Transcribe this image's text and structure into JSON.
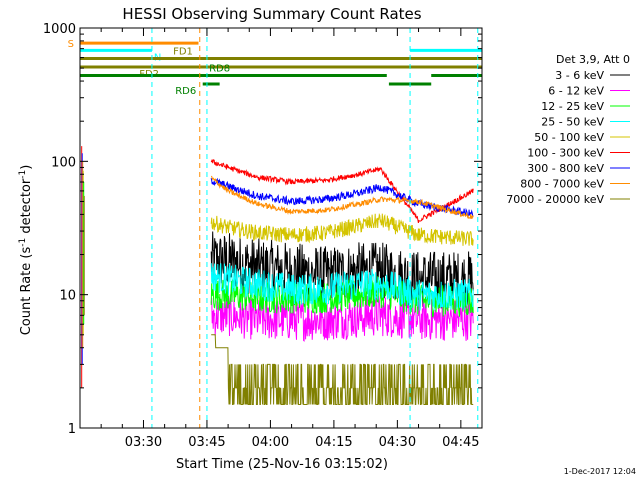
{
  "chart_data": {
    "type": "line",
    "title": "HESSI Observing Summary Count Rates",
    "xlabel": "Start Time (25-Nov-16 03:15:02)",
    "ylabel_main": "Count Rate (s",
    "ylabel_sup1": "-1",
    "ylabel_mid": " detector",
    "ylabel_sup2": "-1",
    "ylabel_end": ")",
    "yscale": "log",
    "ylim": [
      1,
      1000
    ],
    "xlim_minutes": [
      0,
      95
    ],
    "x_ticks": [
      "03:30",
      "03:45",
      "04:00",
      "04:15",
      "04:30",
      "04:45"
    ],
    "y_ticks": [
      "1",
      "10",
      "100",
      "1000"
    ],
    "legend_title": "Det 3,9, Att 0",
    "footer_date": "1-Dec-2017 12:04",
    "series": [
      {
        "name": "3 - 6 keV",
        "color": "#000000",
        "values": [
          18,
          18,
          16,
          15,
          14,
          15,
          15,
          13,
          13
        ]
      },
      {
        "name": "6 - 12 keV",
        "color": "#ff00ff",
        "values": [
          7,
          7,
          6.5,
          6.5,
          6.5,
          6.8,
          7,
          6.5,
          6.5
        ]
      },
      {
        "name": "12 - 25 keV",
        "color": "#00ff00",
        "values": [
          10,
          10,
          9.5,
          9.5,
          9.5,
          10,
          10.5,
          9,
          9
        ]
      },
      {
        "name": "25 - 50 keV",
        "color": "#00ffff",
        "values": [
          14,
          13,
          12,
          11,
          11,
          12,
          12,
          10,
          10
        ]
      },
      {
        "name": "50 - 100 keV",
        "color": "#d4c400",
        "values": [
          35,
          32,
          29,
          28,
          29,
          33,
          36,
          28,
          26
        ]
      },
      {
        "name": "100 - 300 keV",
        "color": "#ff0000",
        "values": [
          100,
          90,
          76,
          70,
          72,
          80,
          88,
          36,
          60
        ]
      },
      {
        "name": "300 - 800 keV",
        "color": "#0000ff",
        "values": [
          72,
          65,
          55,
          50,
          52,
          58,
          64,
          48,
          40
        ]
      },
      {
        "name": "800 - 7000 keV",
        "color": "#ff8c00",
        "values": [
          75,
          60,
          48,
          42,
          43,
          48,
          52,
          50,
          38
        ]
      },
      {
        "name": "7000 - 20000 keV",
        "color": "#808000",
        "values": [
          5,
          3,
          2,
          1.5,
          1.5,
          1.6,
          1.8,
          1.5,
          1.5
        ]
      }
    ],
    "series_x_minutes": [
      31,
      35,
      42,
      50,
      58,
      66,
      71,
      80,
      93
    ],
    "flags": [
      {
        "label": "S",
        "color": "#ff8c00",
        "ranges": [
          [
            0,
            28
          ]
        ],
        "level": 770
      },
      {
        "label": "N",
        "color": "#00ffff",
        "ranges": [
          [
            0,
            17
          ],
          [
            78,
            95
          ]
        ],
        "level": 680
      },
      {
        "label": "FD1",
        "color": "#808000",
        "ranges": [
          [
            0,
            95
          ]
        ],
        "level": 590
      },
      {
        "label": "FD2",
        "color": "#808000",
        "ranges": [
          [
            0,
            95
          ]
        ],
        "level": 510
      },
      {
        "label": "RD8",
        "color": "#008000",
        "ranges": [
          [
            0,
            72.5
          ],
          [
            83,
            95
          ]
        ],
        "level": 440
      },
      {
        "label": "RD6",
        "color": "#008000",
        "ranges": [
          [
            29,
            33
          ],
          [
            73,
            83
          ]
        ],
        "level": 380
      }
    ],
    "vlines": [
      {
        "x": 17,
        "color": "#00ffff"
      },
      {
        "x": 28.3,
        "color": "#ff8c00"
      },
      {
        "x": 30,
        "color": "#00ffff"
      },
      {
        "x": 78,
        "color": "#00ffff"
      },
      {
        "x": 94,
        "color": "#00ffff"
      }
    ]
  }
}
